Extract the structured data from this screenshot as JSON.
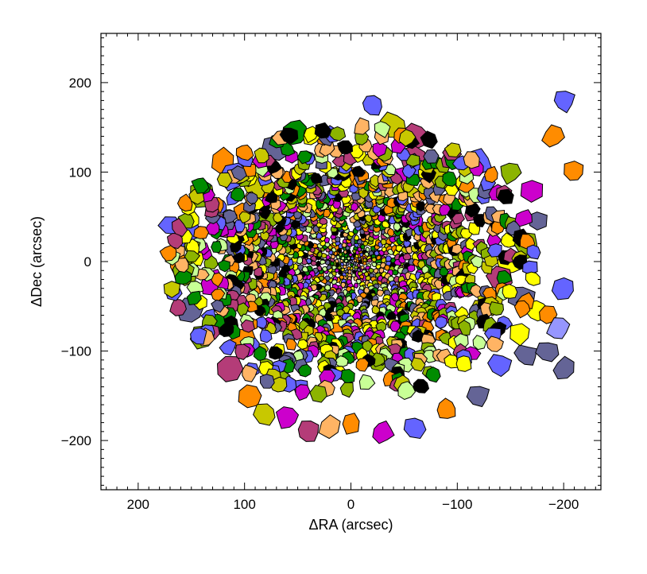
{
  "chart_data": {
    "type": "scatter",
    "description_style": "voronoi-binned map",
    "xlabel": "ΔRA (arcsec)",
    "ylabel": "ΔDec (arcsec)",
    "xlim": [
      235,
      -235
    ],
    "ylim": [
      -255,
      255
    ],
    "x_ticks": [
      200,
      100,
      0,
      -100,
      -200
    ],
    "x_tick_labels": [
      "200",
      "100",
      "0",
      "−100",
      "−200"
    ],
    "y_ticks": [
      -200,
      -100,
      0,
      100,
      200
    ],
    "y_tick_labels": [
      "−200",
      "−100",
      "0",
      "100",
      "200"
    ],
    "grid": false,
    "palette": [
      "#ff8c00",
      "#ffff00",
      "#c8c800",
      "#8cb400",
      "#008c00",
      "#6464ff",
      "#646496",
      "#cc00cc",
      "#b43c78",
      "#000000",
      "#c8ff96",
      "#ffb464",
      "#9696ff"
    ],
    "bins": [
      [
        120,
        112,
        0
      ],
      [
        90,
        85,
        2
      ],
      [
        70,
        128,
        6
      ],
      [
        -20,
        175,
        5
      ],
      [
        -40,
        152,
        2
      ],
      [
        52,
        145,
        4
      ],
      [
        -60,
        140,
        8
      ],
      [
        -58,
        115,
        8
      ],
      [
        -120,
        110,
        5
      ],
      [
        -150,
        100,
        3
      ],
      [
        -170,
        80,
        7
      ],
      [
        -175,
        45,
        6
      ],
      [
        -165,
        20,
        3
      ],
      [
        -150,
        0,
        1
      ],
      [
        -140,
        -20,
        8
      ],
      [
        -160,
        -40,
        6
      ],
      [
        -175,
        -55,
        1
      ],
      [
        140,
        75,
        3
      ],
      [
        110,
        95,
        5
      ],
      [
        100,
        55,
        0
      ],
      [
        120,
        40,
        8
      ],
      [
        110,
        15,
        6
      ],
      [
        150,
        30,
        5
      ],
      [
        160,
        -5,
        0
      ],
      [
        130,
        -25,
        7
      ],
      [
        150,
        -55,
        6
      ],
      [
        120,
        -70,
        4
      ],
      [
        140,
        -85,
        3
      ],
      [
        100,
        -90,
        0
      ],
      [
        115,
        -120,
        8
      ],
      [
        95,
        -150,
        0
      ],
      [
        80,
        -170,
        2
      ],
      [
        60,
        -175,
        7
      ],
      [
        40,
        -190,
        8
      ],
      [
        20,
        -185,
        11
      ],
      [
        0,
        -180,
        0
      ],
      [
        -30,
        -190,
        7
      ],
      [
        -60,
        -185,
        5
      ],
      [
        -90,
        -165,
        0
      ],
      [
        -120,
        -150,
        6
      ],
      [
        -140,
        -115,
        5
      ],
      [
        -165,
        -105,
        6
      ],
      [
        -160,
        -80,
        1
      ],
      [
        -185,
        -60,
        0
      ],
      [
        -200,
        -30,
        5
      ],
      [
        -130,
        -45,
        2
      ],
      [
        -110,
        -30,
        8
      ],
      [
        -105,
        5,
        3
      ],
      [
        -95,
        30,
        0
      ],
      [
        -95,
        60,
        4
      ],
      [
        -80,
        90,
        2
      ],
      [
        -65,
        100,
        5
      ],
      [
        -45,
        95,
        7
      ],
      [
        -25,
        85,
        1
      ],
      [
        -5,
        95,
        0
      ],
      [
        15,
        95,
        2
      ],
      [
        35,
        90,
        1
      ],
      [
        55,
        90,
        4
      ],
      [
        75,
        70,
        0
      ],
      [
        80,
        45,
        3
      ],
      [
        70,
        25,
        7
      ],
      [
        85,
        0,
        8
      ],
      [
        80,
        -25,
        0
      ],
      [
        70,
        -50,
        2
      ],
      [
        55,
        -75,
        1
      ],
      [
        40,
        -95,
        0
      ],
      [
        20,
        -105,
        4
      ],
      [
        0,
        -100,
        8
      ],
      [
        -25,
        -110,
        3
      ],
      [
        -45,
        -95,
        1
      ],
      [
        -60,
        -75,
        0
      ],
      [
        -75,
        -55,
        5
      ],
      [
        -75,
        -30,
        2
      ],
      [
        -70,
        -5,
        4
      ],
      [
        -70,
        20,
        0
      ],
      [
        -60,
        45,
        7
      ],
      [
        -40,
        60,
        2
      ],
      [
        -20,
        65,
        0
      ],
      [
        0,
        65,
        8
      ],
      [
        20,
        65,
        3
      ],
      [
        40,
        60,
        1
      ],
      [
        55,
        40,
        6
      ],
      [
        50,
        15,
        0
      ],
      [
        55,
        -10,
        4
      ],
      [
        50,
        -35,
        8
      ],
      [
        35,
        -60,
        3
      ],
      [
        15,
        -70,
        0
      ],
      [
        -5,
        -65,
        1
      ],
      [
        -25,
        -70,
        6
      ],
      [
        -40,
        -50,
        7
      ],
      [
        -50,
        -25,
        0
      ],
      [
        -45,
        0,
        3
      ],
      [
        -45,
        25,
        1
      ],
      [
        -30,
        40,
        4
      ],
      [
        -10,
        45,
        0
      ],
      [
        10,
        40,
        5
      ],
      [
        30,
        35,
        2
      ],
      [
        35,
        10,
        7
      ],
      [
        30,
        -15,
        0
      ],
      [
        25,
        -35,
        1
      ],
      [
        5,
        -45,
        8
      ],
      [
        -15,
        -40,
        3
      ],
      [
        -30,
        -20,
        0
      ],
      [
        -25,
        5,
        4
      ],
      [
        -20,
        25,
        1
      ],
      [
        0,
        25,
        6
      ],
      [
        15,
        15,
        0
      ],
      [
        15,
        -5,
        3
      ],
      [
        5,
        -20,
        1
      ],
      [
        -10,
        -15,
        7
      ],
      [
        -10,
        5,
        0
      ],
      [
        5,
        5,
        4
      ],
      [
        -190,
        140,
        0
      ],
      [
        -210,
        100,
        0
      ],
      [
        -200,
        180,
        5
      ],
      [
        170,
        40,
        5
      ],
      [
        -185,
        -100,
        6
      ],
      [
        -200,
        -120,
        6
      ],
      [
        155,
        -10,
        3
      ],
      [
        -195,
        -75,
        12
      ]
    ]
  }
}
